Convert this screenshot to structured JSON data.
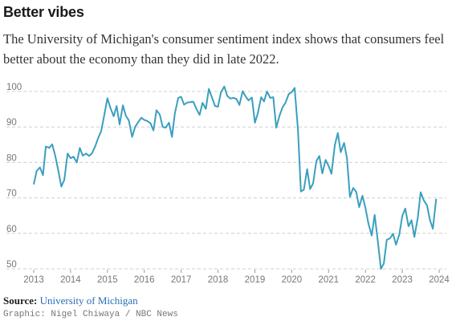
{
  "title": "Better vibes",
  "subtitle": "The University of Michigan's consumer sentiment index shows that consumers feel better about the economy than they did in late 2022.",
  "source": {
    "label": "Source:",
    "name": "University of Michigan"
  },
  "credit": "Graphic: Nigel Chiwaya / NBC News",
  "chart_data": {
    "type": "line",
    "title": "",
    "xlabel": "",
    "ylabel": "",
    "xlim": [
      2013,
      2024
    ],
    "ylim": [
      50,
      100
    ],
    "yticks": [
      50,
      60,
      70,
      80,
      90,
      100
    ],
    "xticks": [
      2013,
      2014,
      2015,
      2016,
      2017,
      2018,
      2019,
      2020,
      2021,
      2022,
      2023,
      2024
    ],
    "grid": "horizontal dashed",
    "line_color": "#3a9fbf",
    "series": [
      {
        "values": [
          [
            2013.0,
            73.8
          ],
          [
            2013.08,
            77.6
          ],
          [
            2013.17,
            78.6
          ],
          [
            2013.25,
            76.4
          ],
          [
            2013.33,
            84.5
          ],
          [
            2013.42,
            84.1
          ],
          [
            2013.5,
            85.1
          ],
          [
            2013.58,
            82.1
          ],
          [
            2013.67,
            77.5
          ],
          [
            2013.75,
            73.2
          ],
          [
            2013.83,
            75.1
          ],
          [
            2013.92,
            82.5
          ],
          [
            2014.0,
            81.2
          ],
          [
            2014.08,
            81.6
          ],
          [
            2014.17,
            80.0
          ],
          [
            2014.25,
            84.1
          ],
          [
            2014.33,
            81.9
          ],
          [
            2014.42,
            82.5
          ],
          [
            2014.5,
            81.8
          ],
          [
            2014.58,
            82.5
          ],
          [
            2014.67,
            84.6
          ],
          [
            2014.75,
            86.9
          ],
          [
            2014.83,
            88.8
          ],
          [
            2014.92,
            93.6
          ],
          [
            2015.0,
            98.1
          ],
          [
            2015.08,
            95.4
          ],
          [
            2015.17,
            93.0
          ],
          [
            2015.25,
            95.9
          ],
          [
            2015.33,
            90.7
          ],
          [
            2015.42,
            96.1
          ],
          [
            2015.5,
            93.1
          ],
          [
            2015.58,
            91.9
          ],
          [
            2015.67,
            87.2
          ],
          [
            2015.75,
            90.0
          ],
          [
            2015.83,
            91.3
          ],
          [
            2015.92,
            92.6
          ],
          [
            2016.0,
            92.0
          ],
          [
            2016.08,
            91.7
          ],
          [
            2016.17,
            91.0
          ],
          [
            2016.25,
            89.0
          ],
          [
            2016.33,
            94.7
          ],
          [
            2016.42,
            93.5
          ],
          [
            2016.5,
            90.0
          ],
          [
            2016.58,
            89.8
          ],
          [
            2016.67,
            91.2
          ],
          [
            2016.75,
            87.2
          ],
          [
            2016.83,
            93.8
          ],
          [
            2016.92,
            98.2
          ],
          [
            2017.0,
            98.5
          ],
          [
            2017.08,
            96.3
          ],
          [
            2017.17,
            96.9
          ],
          [
            2017.25,
            97.0
          ],
          [
            2017.33,
            97.1
          ],
          [
            2017.42,
            95.0
          ],
          [
            2017.5,
            93.4
          ],
          [
            2017.58,
            96.8
          ],
          [
            2017.67,
            95.1
          ],
          [
            2017.75,
            100.7
          ],
          [
            2017.83,
            98.5
          ],
          [
            2017.92,
            95.9
          ],
          [
            2018.0,
            95.7
          ],
          [
            2018.08,
            99.7
          ],
          [
            2018.17,
            101.4
          ],
          [
            2018.25,
            98.8
          ],
          [
            2018.33,
            98.0
          ],
          [
            2018.42,
            98.2
          ],
          [
            2018.5,
            97.9
          ],
          [
            2018.58,
            96.2
          ],
          [
            2018.67,
            100.1
          ],
          [
            2018.75,
            98.6
          ],
          [
            2018.83,
            97.5
          ],
          [
            2018.92,
            98.3
          ],
          [
            2019.0,
            91.2
          ],
          [
            2019.08,
            93.8
          ],
          [
            2019.17,
            98.4
          ],
          [
            2019.25,
            97.2
          ],
          [
            2019.33,
            100.0
          ],
          [
            2019.42,
            98.2
          ],
          [
            2019.5,
            98.4
          ],
          [
            2019.58,
            89.8
          ],
          [
            2019.67,
            93.2
          ],
          [
            2019.75,
            95.5
          ],
          [
            2019.83,
            96.8
          ],
          [
            2019.92,
            99.3
          ],
          [
            2020.0,
            99.8
          ],
          [
            2020.08,
            101.0
          ],
          [
            2020.17,
            89.1
          ],
          [
            2020.25,
            71.8
          ],
          [
            2020.33,
            72.3
          ],
          [
            2020.42,
            78.1
          ],
          [
            2020.5,
            72.5
          ],
          [
            2020.58,
            74.1
          ],
          [
            2020.67,
            80.4
          ],
          [
            2020.75,
            81.8
          ],
          [
            2020.83,
            76.9
          ],
          [
            2020.92,
            80.7
          ],
          [
            2021.0,
            79.0
          ],
          [
            2021.08,
            76.8
          ],
          [
            2021.17,
            84.9
          ],
          [
            2021.25,
            88.3
          ],
          [
            2021.33,
            82.9
          ],
          [
            2021.42,
            85.5
          ],
          [
            2021.5,
            81.2
          ],
          [
            2021.58,
            70.3
          ],
          [
            2021.67,
            72.8
          ],
          [
            2021.75,
            71.7
          ],
          [
            2021.83,
            67.4
          ],
          [
            2021.92,
            70.6
          ],
          [
            2022.0,
            67.2
          ],
          [
            2022.08,
            62.8
          ],
          [
            2022.17,
            59.4
          ],
          [
            2022.25,
            65.2
          ],
          [
            2022.33,
            58.4
          ],
          [
            2022.42,
            50.0
          ],
          [
            2022.5,
            51.5
          ],
          [
            2022.58,
            58.2
          ],
          [
            2022.67,
            58.6
          ],
          [
            2022.75,
            59.9
          ],
          [
            2022.83,
            56.8
          ],
          [
            2022.92,
            59.7
          ],
          [
            2023.0,
            64.9
          ],
          [
            2023.08,
            67.0
          ],
          [
            2023.17,
            62.0
          ],
          [
            2023.25,
            63.7
          ],
          [
            2023.33,
            59.0
          ],
          [
            2023.42,
            64.4
          ],
          [
            2023.5,
            71.6
          ],
          [
            2023.58,
            69.4
          ],
          [
            2023.67,
            67.9
          ],
          [
            2023.75,
            63.8
          ],
          [
            2023.83,
            61.3
          ],
          [
            2023.92,
            69.7
          ]
        ]
      }
    ]
  }
}
